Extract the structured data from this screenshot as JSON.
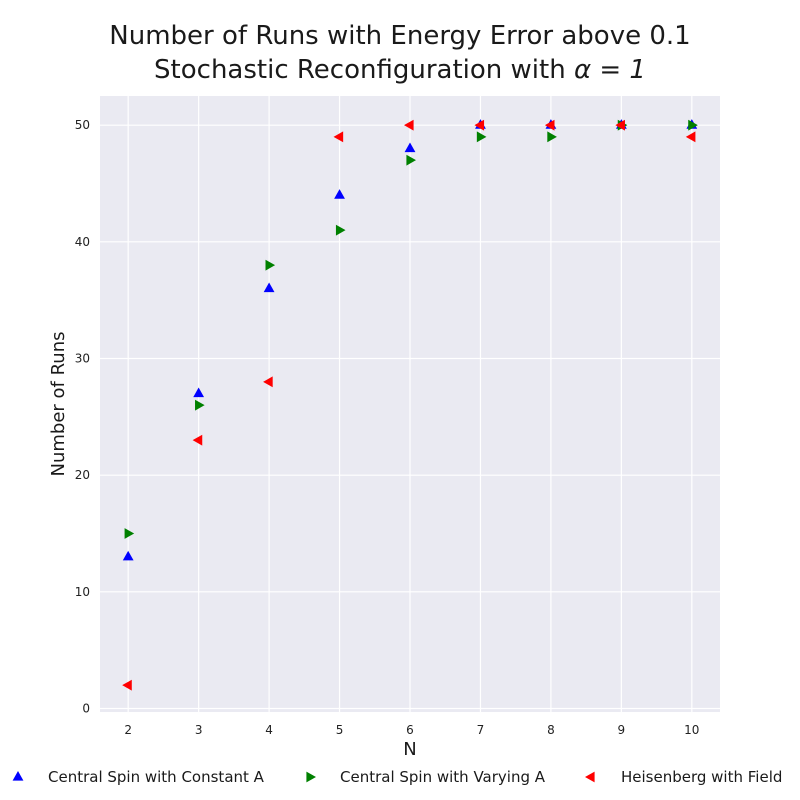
{
  "chart_data": {
    "type": "scatter",
    "title_line1": "Number of Runs with Energy Error above 0.1",
    "title_line2_prefix": "Stochastic Reconfiguration with ",
    "title_line2_symbol": "α = 1",
    "xlabel": "N",
    "ylabel": "Number of Runs",
    "xlim": [
      1.6,
      10.4
    ],
    "ylim": [
      -0.3,
      52.5
    ],
    "xticks": [
      2,
      3,
      4,
      5,
      6,
      7,
      8,
      9,
      10
    ],
    "yticks": [
      0,
      10,
      20,
      30,
      40,
      50
    ],
    "grid": true,
    "legend_position": "bottom",
    "series": [
      {
        "name": "Central Spin with Constant A",
        "marker": "triangle-up",
        "color": "#0000ff",
        "x": [
          2,
          3,
          4,
          5,
          6,
          7,
          8,
          9,
          10
        ],
        "y": [
          13,
          27,
          36,
          44,
          48,
          50,
          50,
          50,
          50
        ]
      },
      {
        "name": "Central Spin with Varying A",
        "marker": "triangle-right",
        "color": "#008000",
        "x": [
          2,
          3,
          4,
          5,
          6,
          7,
          8,
          9,
          10
        ],
        "y": [
          15,
          26,
          38,
          41,
          47,
          49,
          49,
          50,
          50
        ]
      },
      {
        "name": "Heisenberg with Field",
        "marker": "triangle-left",
        "color": "#ff0000",
        "x": [
          2,
          3,
          4,
          5,
          6,
          7,
          8,
          9,
          10
        ],
        "y": [
          2,
          23,
          28,
          49,
          50,
          50,
          50,
          50,
          49
        ]
      }
    ],
    "colors": {
      "plot_background": "#eaeaf2",
      "grid": "#ffffff"
    }
  }
}
